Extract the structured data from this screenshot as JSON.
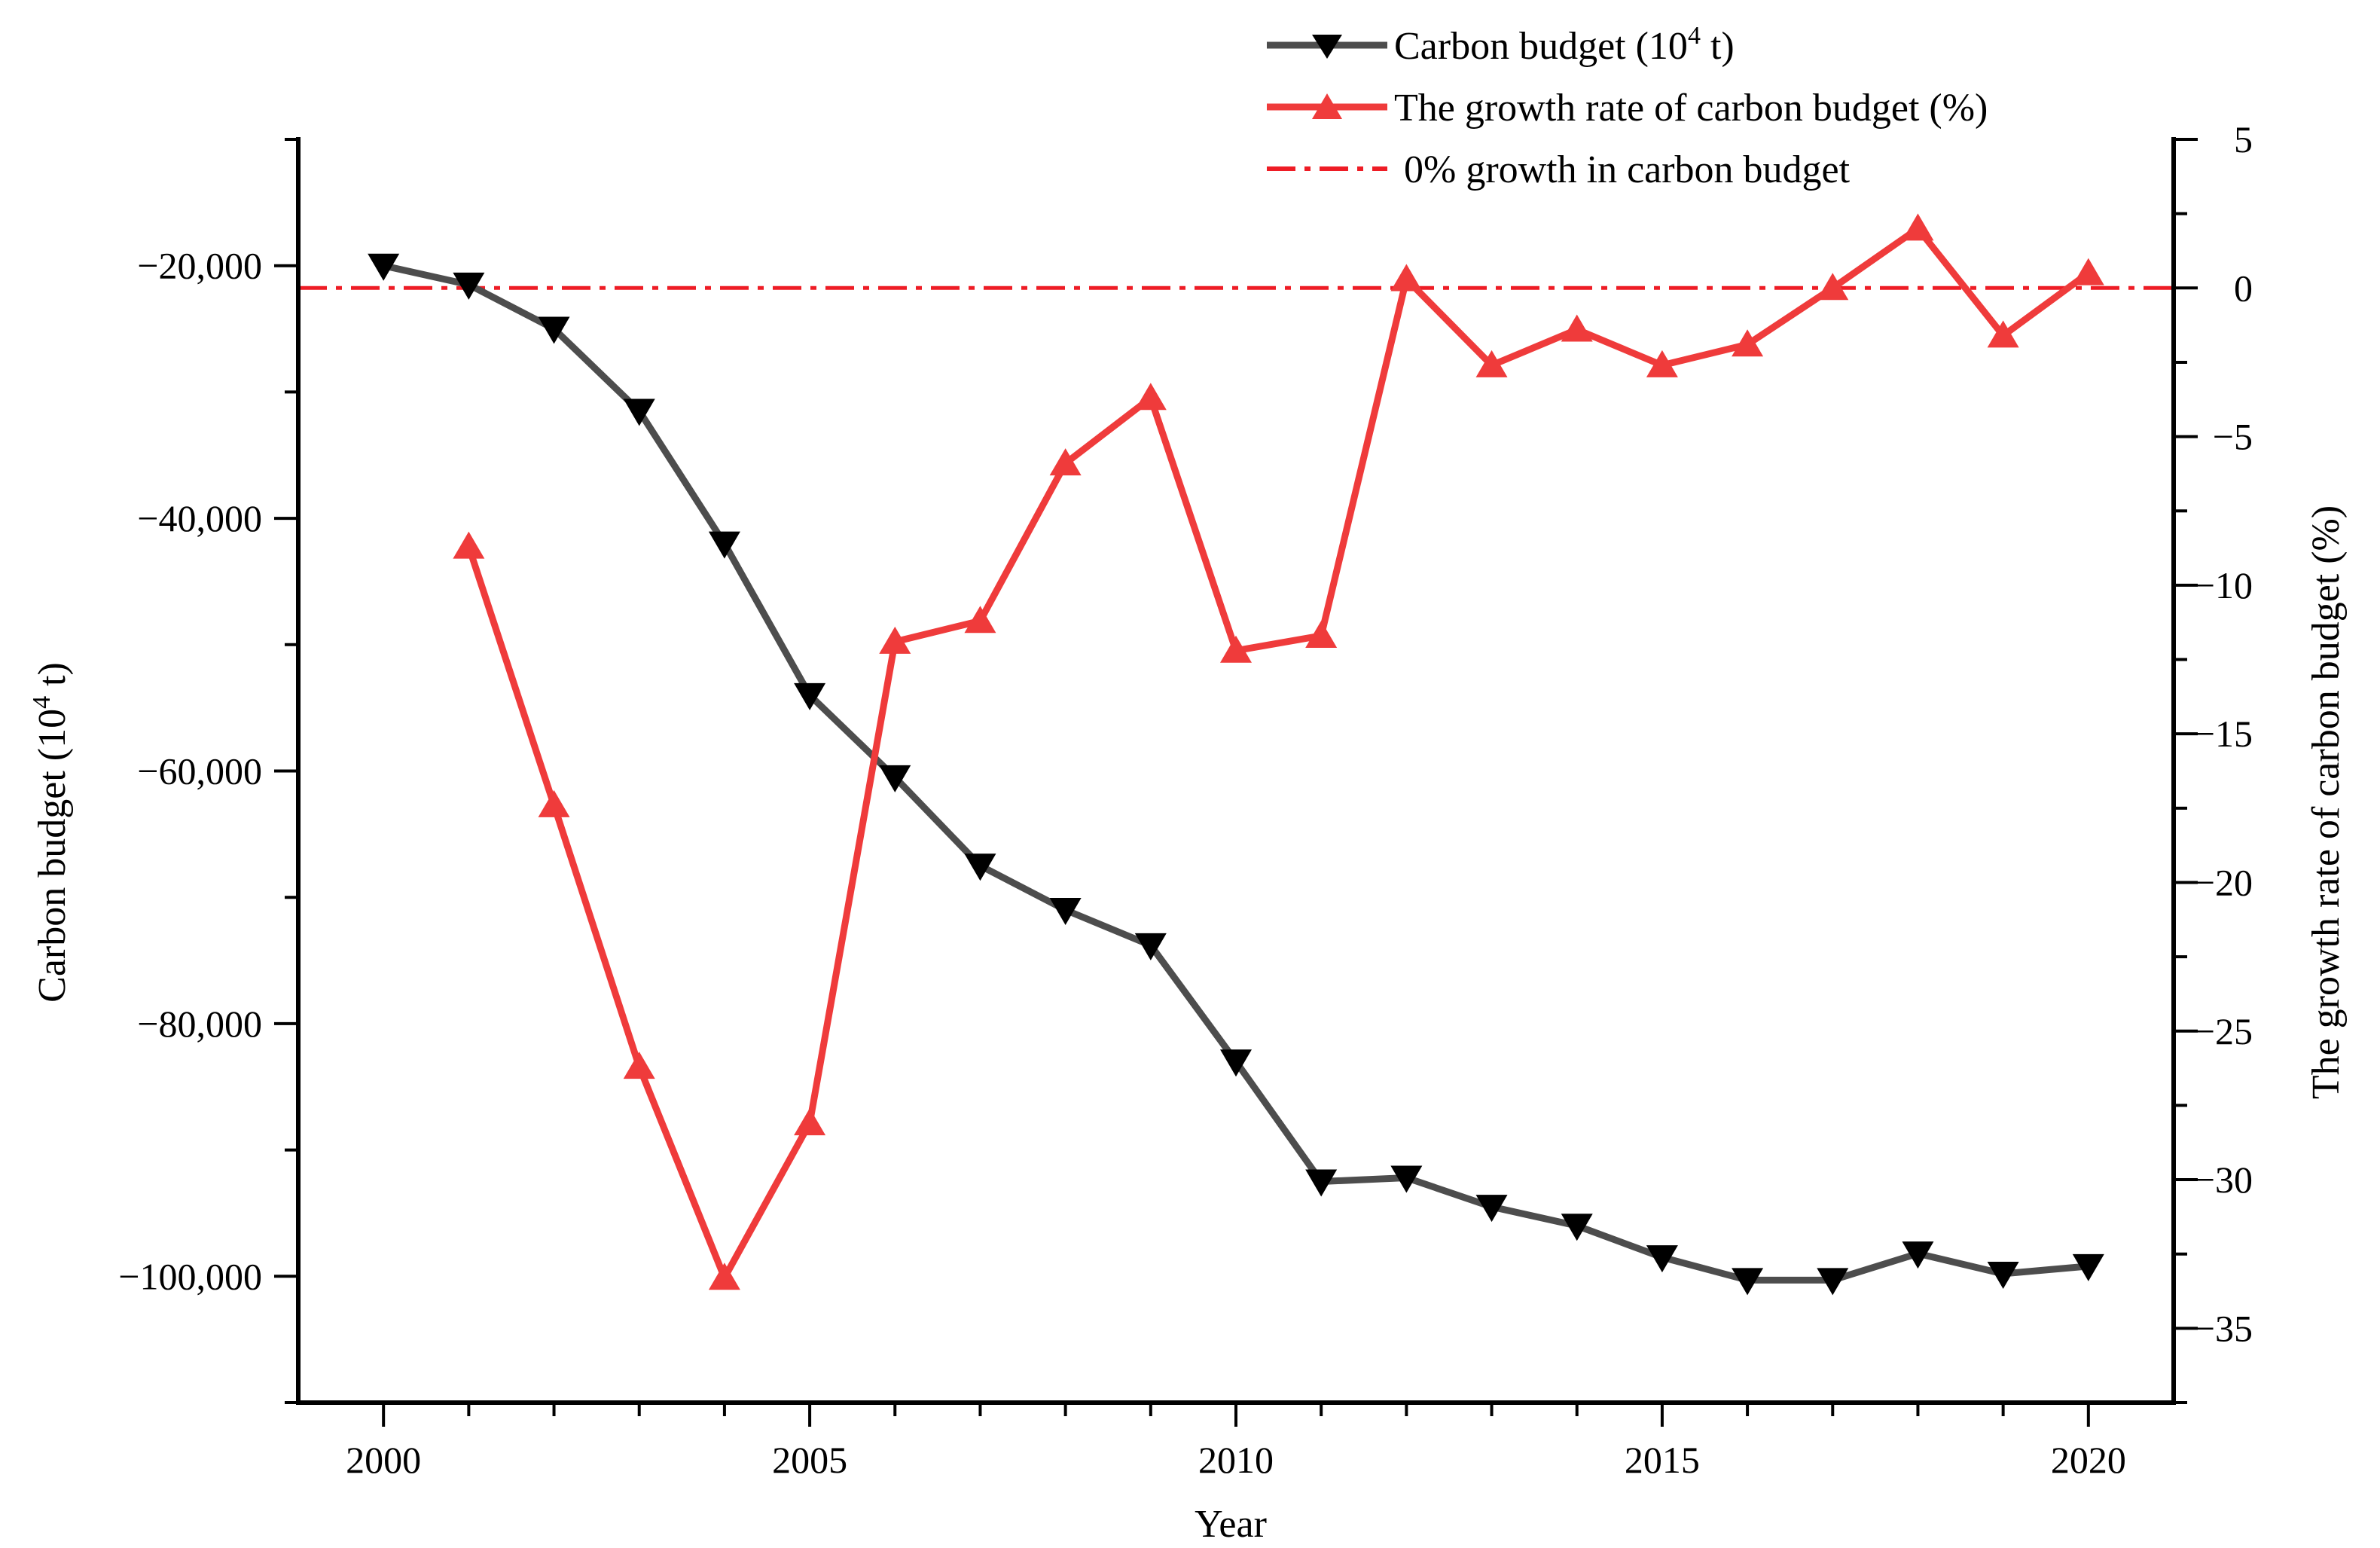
{
  "chart_data": {
    "type": "line",
    "title": "",
    "categories": [
      2000,
      2001,
      2002,
      2003,
      2004,
      2005,
      2006,
      2007,
      2008,
      2009,
      2010,
      2011,
      2012,
      2013,
      2014,
      2015,
      2016,
      2017,
      2018,
      2019,
      2020
    ],
    "xlabel": "Year",
    "xlim": [
      1999,
      2021
    ],
    "xticks": [
      2000,
      2005,
      2010,
      2015,
      2020
    ],
    "xtick_labels": [
      "2000",
      "2005",
      "2010",
      "2015",
      "2020"
    ],
    "ylabel_left": {
      "main": "Carbon budget (10",
      "sup": "4",
      "tail": " t)"
    },
    "ylim_left": [
      -110000,
      -10000
    ],
    "yticks_left": [
      -20000,
      -40000,
      -60000,
      -80000,
      -100000
    ],
    "ytick_labels_left": [
      "−20,000",
      "−40,000",
      "−60,000",
      "−80,000",
      "−100,000"
    ],
    "ylabel_right": "The growth rate of carbon budget (%)",
    "ylim_right": [
      -37.5,
      5
    ],
    "yticks_right": [
      5,
      0,
      -5,
      -10,
      -15,
      -20,
      -25,
      -30,
      -35
    ],
    "ytick_labels_right": [
      "5",
      "0",
      "−5",
      "−10",
      "−15",
      "−20",
      "−25",
      "−30",
      "−35"
    ],
    "series": [
      {
        "name": "Carbon budget (10^4 t)",
        "axis": "left",
        "color": "#4d4d4d",
        "marker": "triangle-down",
        "marker_color": "#000000",
        "x": [
          2000,
          2001,
          2002,
          2003,
          2004,
          2005,
          2006,
          2007,
          2008,
          2009,
          2010,
          2011,
          2012,
          2013,
          2014,
          2015,
          2016,
          2017,
          2018,
          2019,
          2020
        ],
        "values": [
          -20000,
          -21500,
          -25000,
          -31500,
          -42000,
          -54000,
          -60500,
          -67500,
          -71000,
          -73800,
          -83000,
          -92500,
          -92200,
          -94500,
          -96000,
          -98500,
          -100300,
          -100300,
          -98200,
          -99800,
          -99200
        ]
      },
      {
        "name": "The growth rate of carbon budget (%)",
        "axis": "right",
        "color": "#ef3b3b",
        "marker": "triangle-up",
        "marker_color": "#ef3b3b",
        "x": [
          2001,
          2002,
          2003,
          2004,
          2005,
          2006,
          2007,
          2008,
          2009,
          2010,
          2011,
          2012,
          2013,
          2014,
          2015,
          2016,
          2017,
          2018,
          2019,
          2020
        ],
        "values": [
          -8.7,
          -17.4,
          -26.2,
          -33.3,
          -28.1,
          -11.9,
          -11.2,
          -5.9,
          -3.7,
          -12.2,
          -11.7,
          0.3,
          -2.6,
          -1.4,
          -2.6,
          -1.9,
          0.0,
          2.0,
          -1.6,
          0.5
        ]
      }
    ],
    "reference_line": {
      "axis": "right",
      "value": 0,
      "style": "dash-dot",
      "color": "#ee1c25"
    },
    "legend": {
      "placement": "top-right",
      "entries": [
        {
          "main": "Carbon budget (10",
          "sup": "4",
          "tail": " t)"
        },
        {
          "main": "The growth rate of carbon budget (%)",
          "sup": "",
          "tail": ""
        },
        {
          "main": " 0% growth in carbon budget",
          "sup": "",
          "tail": ""
        }
      ]
    }
  }
}
